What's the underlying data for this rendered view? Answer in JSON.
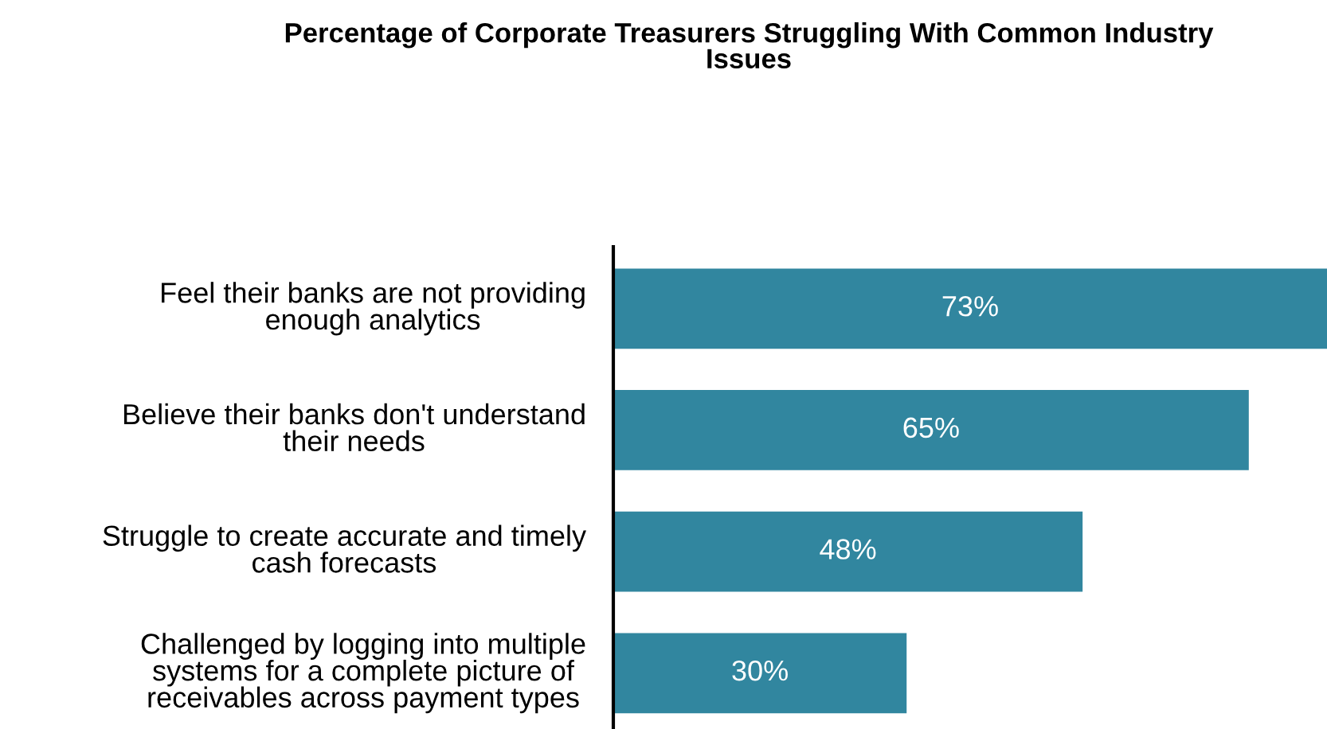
{
  "chart_data": {
    "type": "bar",
    "orientation": "horizontal",
    "title": "Percentage of Corporate Treasurers Struggling With Common Industry\nIssues",
    "categories": [
      "Feel their banks are not providing\nenough analytics",
      "Believe their banks don't understand\ntheir needs",
      "Struggle to create accurate and timely\ncash forecasts",
      "Challenged by logging into multiple\nsystems for a complete picture of\nreceivables across payment types"
    ],
    "values": [
      73,
      65,
      48,
      30
    ],
    "value_labels": [
      "73%",
      "65%",
      "48%",
      "30%"
    ],
    "color": "#31869f"
  }
}
